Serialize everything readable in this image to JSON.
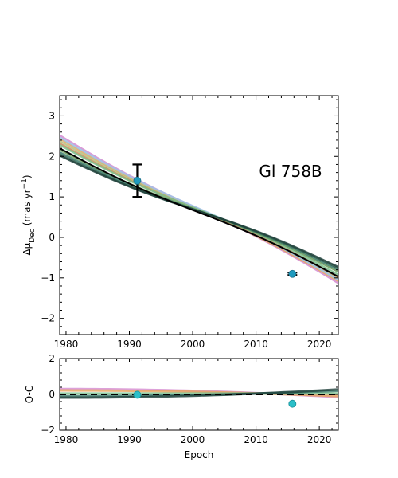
{
  "chart_data": [
    {
      "type": "line",
      "panel": "main",
      "annotation": "Gl 758B",
      "ylabel": "Δμ",
      "ylabel_sub": "Dec",
      "ylabel_unit": "(mas yr",
      "ylabel_exp": "−1",
      "ylabel_close": ")",
      "xlim": [
        1979,
        2023
      ],
      "ylim": [
        -2.4,
        3.5
      ],
      "x_ticks": [
        1980,
        1990,
        2000,
        2010,
        2020
      ],
      "y_ticks": [
        -2,
        -1,
        0,
        1,
        2,
        3
      ],
      "best_fit": {
        "x": [
          1979,
          2023
        ],
        "y": [
          2.2,
          -0.97
        ]
      },
      "orbit_curves": [
        {
          "color": "#d48ad0",
          "y": [
            2.52,
            -1.13
          ]
        },
        {
          "color": "#e6a35a",
          "y": [
            2.44,
            -1.08
          ]
        },
        {
          "color": "#b9c07a",
          "y": [
            2.38,
            -1.02
          ]
        },
        {
          "color": "#9fc3e8",
          "y": [
            2.47,
            -1.05
          ]
        },
        {
          "color": "#c98a5a",
          "y": [
            2.32,
            -0.98
          ]
        },
        {
          "color": "#7bbf8c",
          "y": [
            2.28,
            -0.92
          ]
        },
        {
          "color": "#6a9a5c",
          "y": [
            2.16,
            -0.85
          ]
        },
        {
          "color": "#3a7a6a",
          "y": [
            2.1,
            -0.8
          ]
        },
        {
          "color": "#2e5a4a",
          "y": [
            2.05,
            -0.76
          ]
        },
        {
          "color": "#1e3f3a",
          "y": [
            2.02,
            -0.73
          ]
        }
      ],
      "measurements": [
        {
          "x": 1991.25,
          "y": 1.4,
          "yerr_low": 0.4,
          "yerr_high": 0.4
        },
        {
          "x": 2015.75,
          "y": -0.9,
          "yerr_low": 0.03,
          "yerr_high": 0.03
        }
      ],
      "marker_color": "#1f9bbf"
    },
    {
      "type": "line",
      "panel": "residual",
      "xlabel": "Epoch",
      "ylabel": "O-C",
      "xlim": [
        1979,
        2023
      ],
      "ylim": [
        -2,
        2
      ],
      "x_ticks": [
        1980,
        1990,
        2000,
        2010,
        2020
      ],
      "y_ticks": [
        -2,
        0,
        2
      ],
      "zero_line": true,
      "residual_curves": [
        {
          "color": "#d48ad0",
          "y": [
            0.3,
            -0.15
          ]
        },
        {
          "color": "#e6a35a",
          "y": [
            0.22,
            -0.1
          ]
        },
        {
          "color": "#7bbf8c",
          "y": [
            0.05,
            0.05
          ]
        },
        {
          "color": "#3a7a6a",
          "y": [
            -0.1,
            0.2
          ]
        },
        {
          "color": "#1e3f3a",
          "y": [
            -0.18,
            0.28
          ]
        }
      ],
      "residuals": [
        {
          "x": 1991.25,
          "y": -0.02
        },
        {
          "x": 2015.75,
          "y": -0.52
        }
      ],
      "marker_color": "#2bbfc9"
    }
  ]
}
